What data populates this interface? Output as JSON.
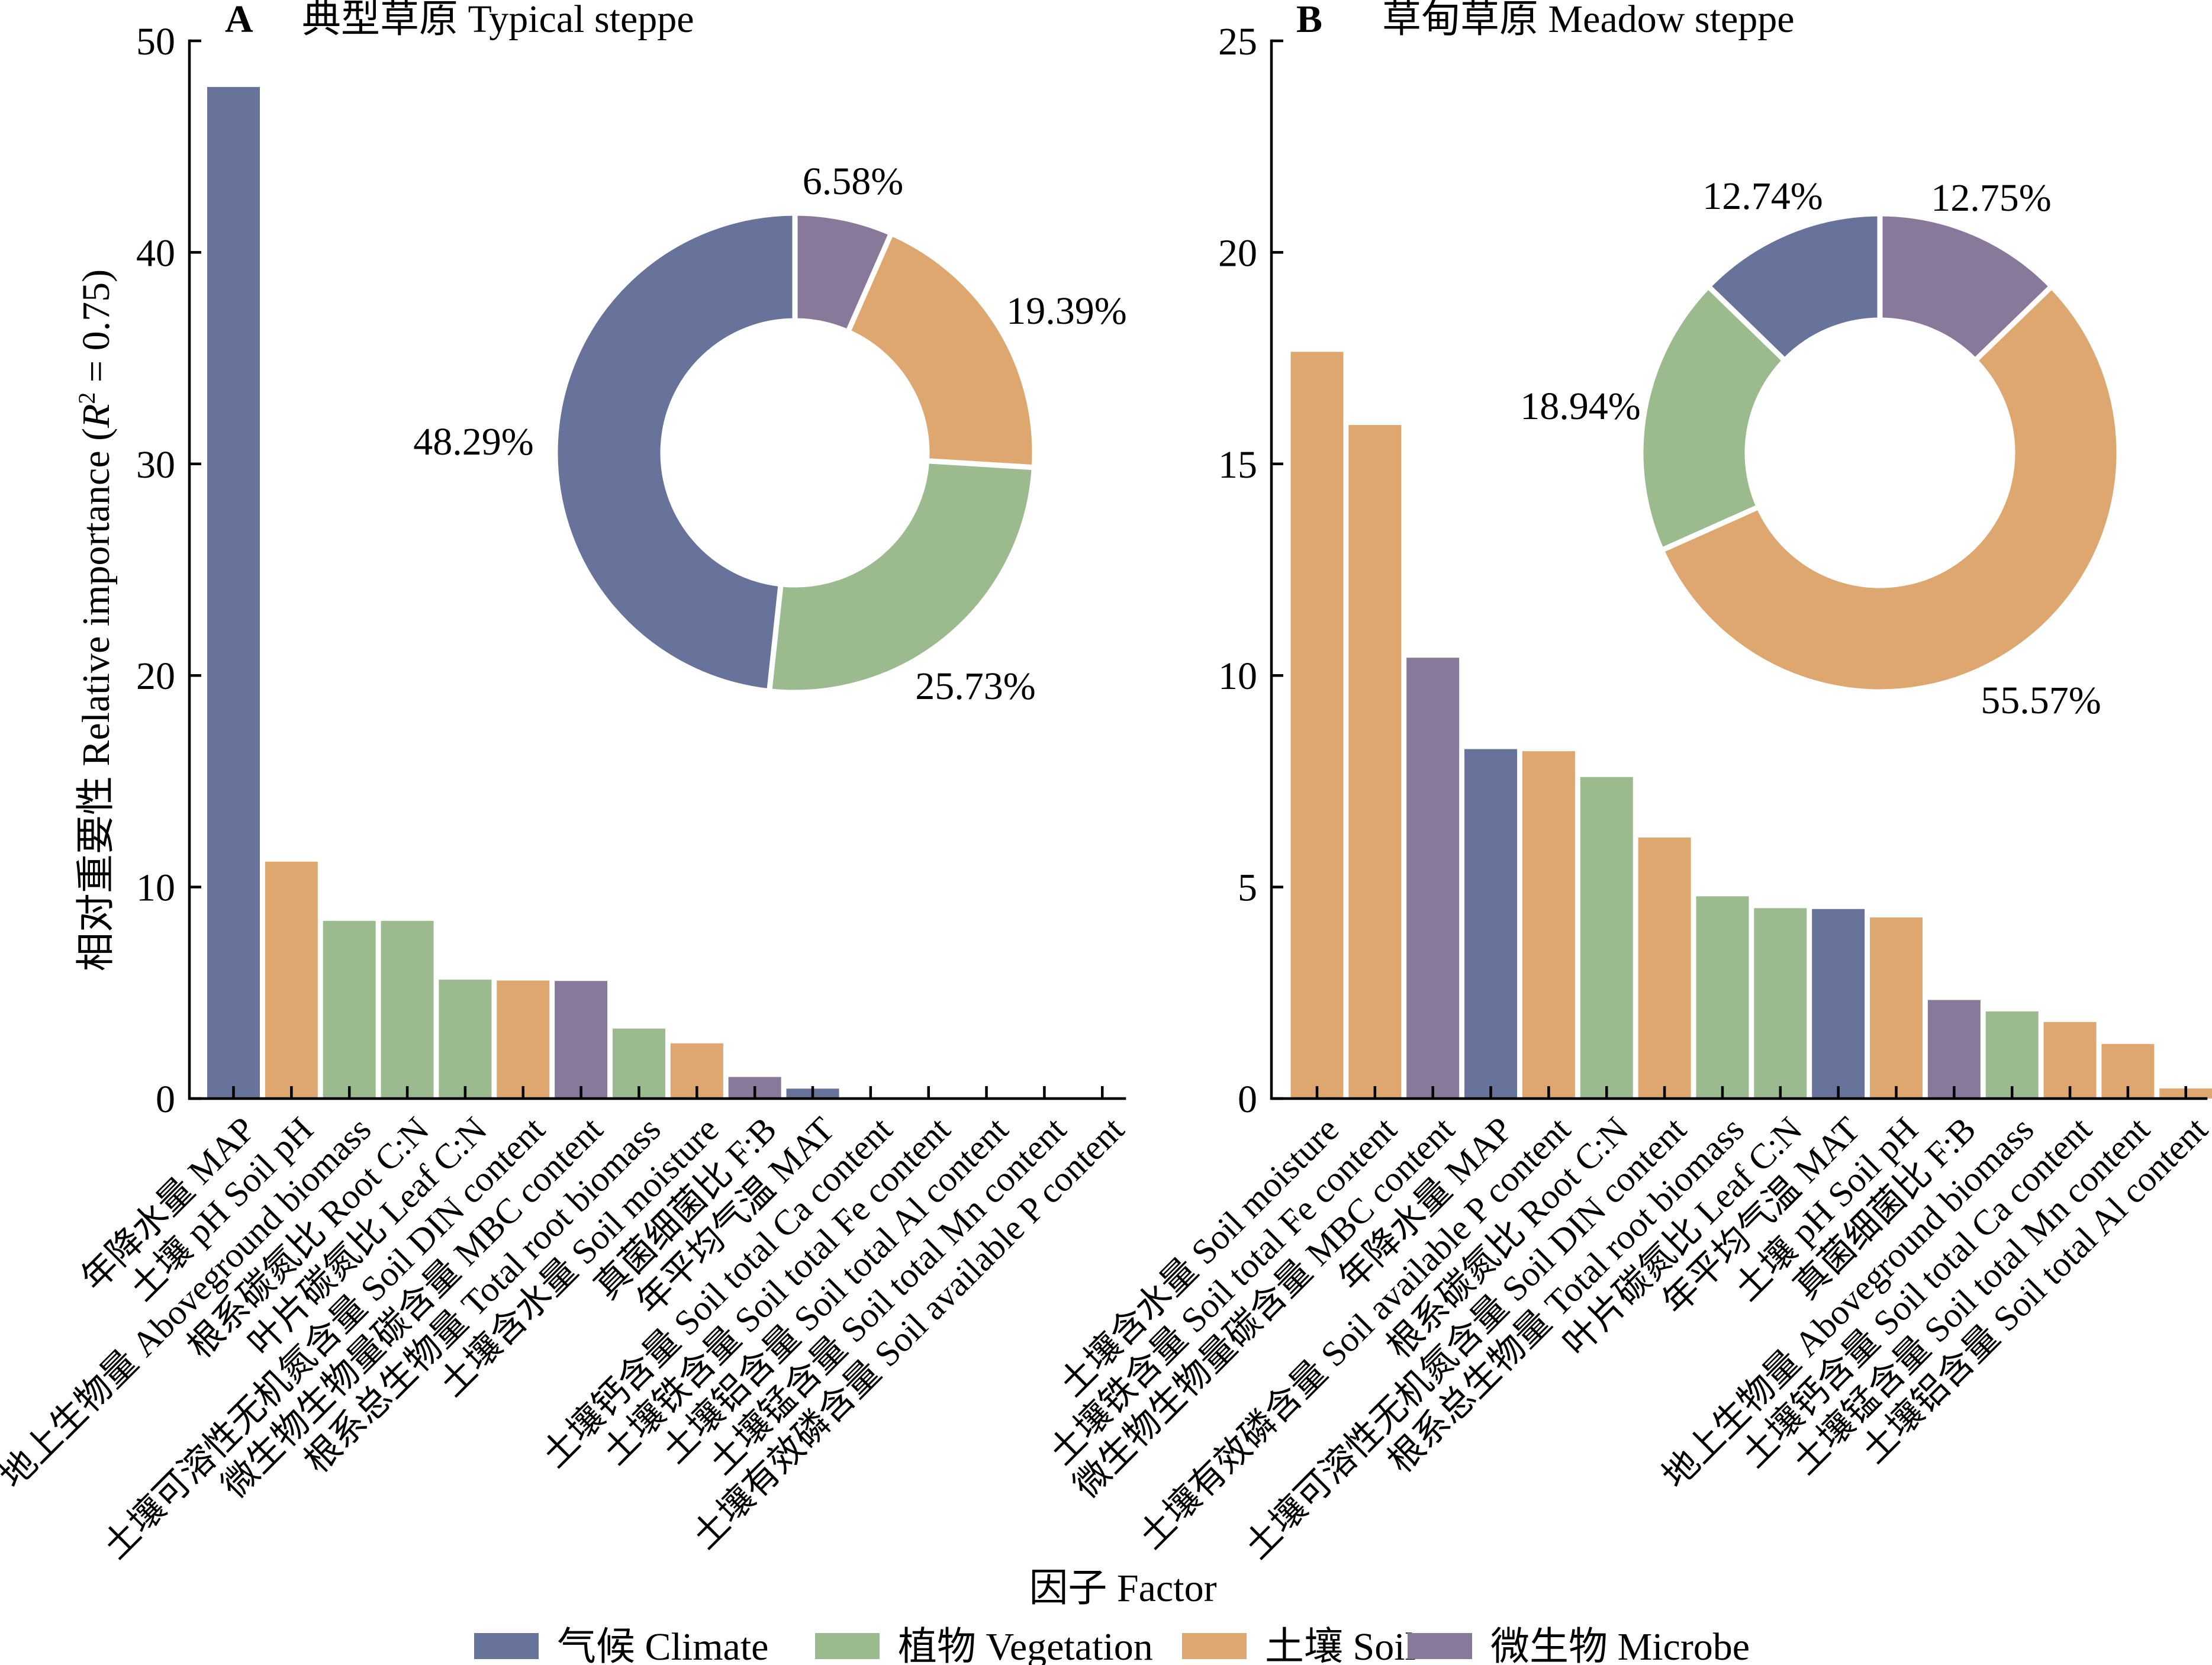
{
  "figure": {
    "xlabel": "因子 Factor",
    "legend": [
      {
        "key": "climate",
        "label": "气候 Climate",
        "color": "#67739b"
      },
      {
        "key": "vegetation",
        "label": "植物 Vegetation",
        "color": "#9bbb8f"
      },
      {
        "key": "soil",
        "label": "土壤 Soil",
        "color": "#dda76f"
      },
      {
        "key": "microbe",
        "label": "微生物 Microbe",
        "color": "#88799a"
      }
    ],
    "legend_position": "bottom-center"
  },
  "chart_data": [
    {
      "type": "bar",
      "panel_letter": "A",
      "title": "典型草原 Typical steppe",
      "ylabel": {
        "prefix": "相对重要性 Relative importance (",
        "var": "R",
        "sup": "2",
        "suffix": " = 0.75)"
      },
      "xlabel": "因子 Factor",
      "ylim": [
        0,
        50
      ],
      "yticks": [
        0,
        10,
        20,
        30,
        40,
        50
      ],
      "grid": false,
      "categories": [
        "年降水量 MAP",
        "土壤 pH Soil pH",
        "地上生物量 Aboveground biomass",
        "根系碳氮比 Root C:N",
        "叶片碳氮比 Leaf C:N",
        "土壤可溶性无机氮含量 Soil DIN content",
        "微生物生物量碳含量 MBC content",
        "根系总生物量 Total root biomass",
        "土壤含水量 Soil moisture",
        "真菌细菌比 F:B",
        "年平均气温 MAT",
        "土壤钙含量 Soil total Ca content",
        "土壤铁含量 Soil total Fe content",
        "土壤铝含量 Soil total Al content",
        "土壤锰含量 Soil total Mn content",
        "土壤有效磷含量 Soil available P content"
      ],
      "groups": [
        "climate",
        "soil",
        "vegetation",
        "vegetation",
        "vegetation",
        "soil",
        "microbe",
        "vegetation",
        "soil",
        "microbe",
        "climate",
        "soil",
        "soil",
        "soil",
        "soil",
        "soil"
      ],
      "values": [
        47.82,
        11.2,
        8.4,
        8.4,
        5.62,
        5.58,
        5.56,
        3.31,
        2.61,
        1.02,
        0.47,
        0,
        0,
        0,
        0,
        0
      ],
      "inset": {
        "type": "pie",
        "style": "donut",
        "start": "top",
        "direction": "clockwise",
        "slices": [
          {
            "group": "microbe",
            "value": 6.58,
            "label": "6.58%"
          },
          {
            "group": "soil",
            "value": 19.39,
            "label": "19.39%"
          },
          {
            "group": "vegetation",
            "value": 25.73,
            "label": "25.73%"
          },
          {
            "group": "climate",
            "value": 48.29,
            "label": "48.29%"
          }
        ]
      }
    },
    {
      "type": "bar",
      "panel_letter": "B",
      "title": "草甸草原 Meadow steppe",
      "xlabel": "因子 Factor",
      "ylim": [
        0,
        25
      ],
      "yticks": [
        0,
        5,
        10,
        15,
        20,
        25
      ],
      "grid": false,
      "categories": [
        "土壤含水量 Soil moisture",
        "土壤铁含量 Soil total Fe content",
        "微生物生物量碳含量 MBC content",
        "年降水量 MAP",
        "土壤有效磷含量 Soil available P content",
        "根系碳氮比 Root C:N",
        "土壤可溶性无机氮含量 Soil DIN content",
        "根系总生物量 Total root biomass",
        "叶片碳氮比 Leaf C:N",
        "年平均气温 MAT",
        "土壤 pH Soil pH",
        "真菌细菌比 F:B",
        "地上生物量 Aboveground biomass",
        "土壤钙含量 Soil total Ca content",
        "土壤锰含量 Soil total Mn content",
        "土壤铝含量 Soil total Al content"
      ],
      "groups": [
        "soil",
        "soil",
        "microbe",
        "climate",
        "soil",
        "vegetation",
        "soil",
        "vegetation",
        "vegetation",
        "climate",
        "soil",
        "microbe",
        "vegetation",
        "soil",
        "soil",
        "soil"
      ],
      "values": [
        17.65,
        15.92,
        10.42,
        8.26,
        8.21,
        7.6,
        6.17,
        4.78,
        4.5,
        4.48,
        4.28,
        2.33,
        2.06,
        1.81,
        1.29,
        0.24
      ],
      "inset": {
        "type": "pie",
        "style": "donut",
        "start": "top",
        "direction": "clockwise",
        "slices": [
          {
            "group": "microbe",
            "value": 12.75,
            "label": "12.75%"
          },
          {
            "group": "soil",
            "value": 55.57,
            "label": "55.57%"
          },
          {
            "group": "vegetation",
            "value": 18.94,
            "label": "18.94%"
          },
          {
            "group": "climate",
            "value": 12.74,
            "label": "12.74%"
          }
        ]
      }
    }
  ]
}
